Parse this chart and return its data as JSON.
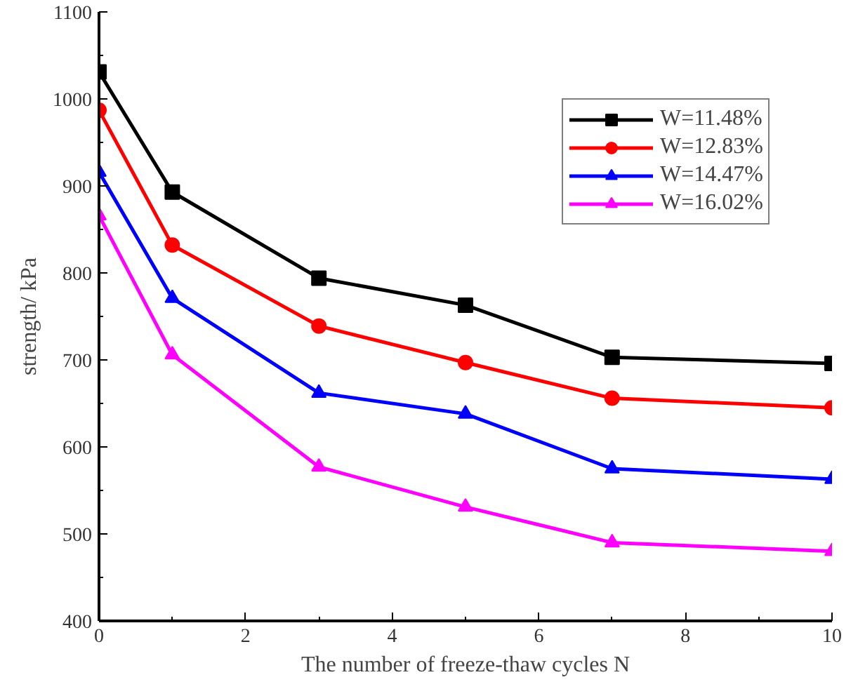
{
  "chart_data": {
    "type": "line",
    "xlabel": "The number of freeze-thaw cycles N",
    "ylabel": "strength/ kPa",
    "x": [
      0,
      1,
      3,
      5,
      7,
      10
    ],
    "series": [
      {
        "name": "W=11.48%",
        "color": "#000000",
        "marker": "square",
        "values": [
          1031,
          893,
          794,
          763,
          703,
          696
        ]
      },
      {
        "name": "W=12.83%",
        "color": "#ff0000",
        "marker": "circle",
        "values": [
          987,
          832,
          739,
          697,
          656,
          645
        ]
      },
      {
        "name": "W=14.47%",
        "color": "#0000ff",
        "marker": "triangle",
        "values": [
          916,
          771,
          662,
          638,
          575,
          563
        ]
      },
      {
        "name": "W=16.02%",
        "color": "#ff00ff",
        "marker": "triangle",
        "values": [
          866,
          706,
          577,
          531,
          490,
          480
        ]
      }
    ],
    "xlim": [
      0,
      10
    ],
    "ylim": [
      400,
      1100
    ],
    "xticks": [
      0,
      2,
      4,
      6,
      8,
      10
    ],
    "yticks": [
      400,
      500,
      600,
      700,
      800,
      900,
      1000,
      1100
    ],
    "grid": false,
    "legend": "top right",
    "line_style": "solid"
  }
}
